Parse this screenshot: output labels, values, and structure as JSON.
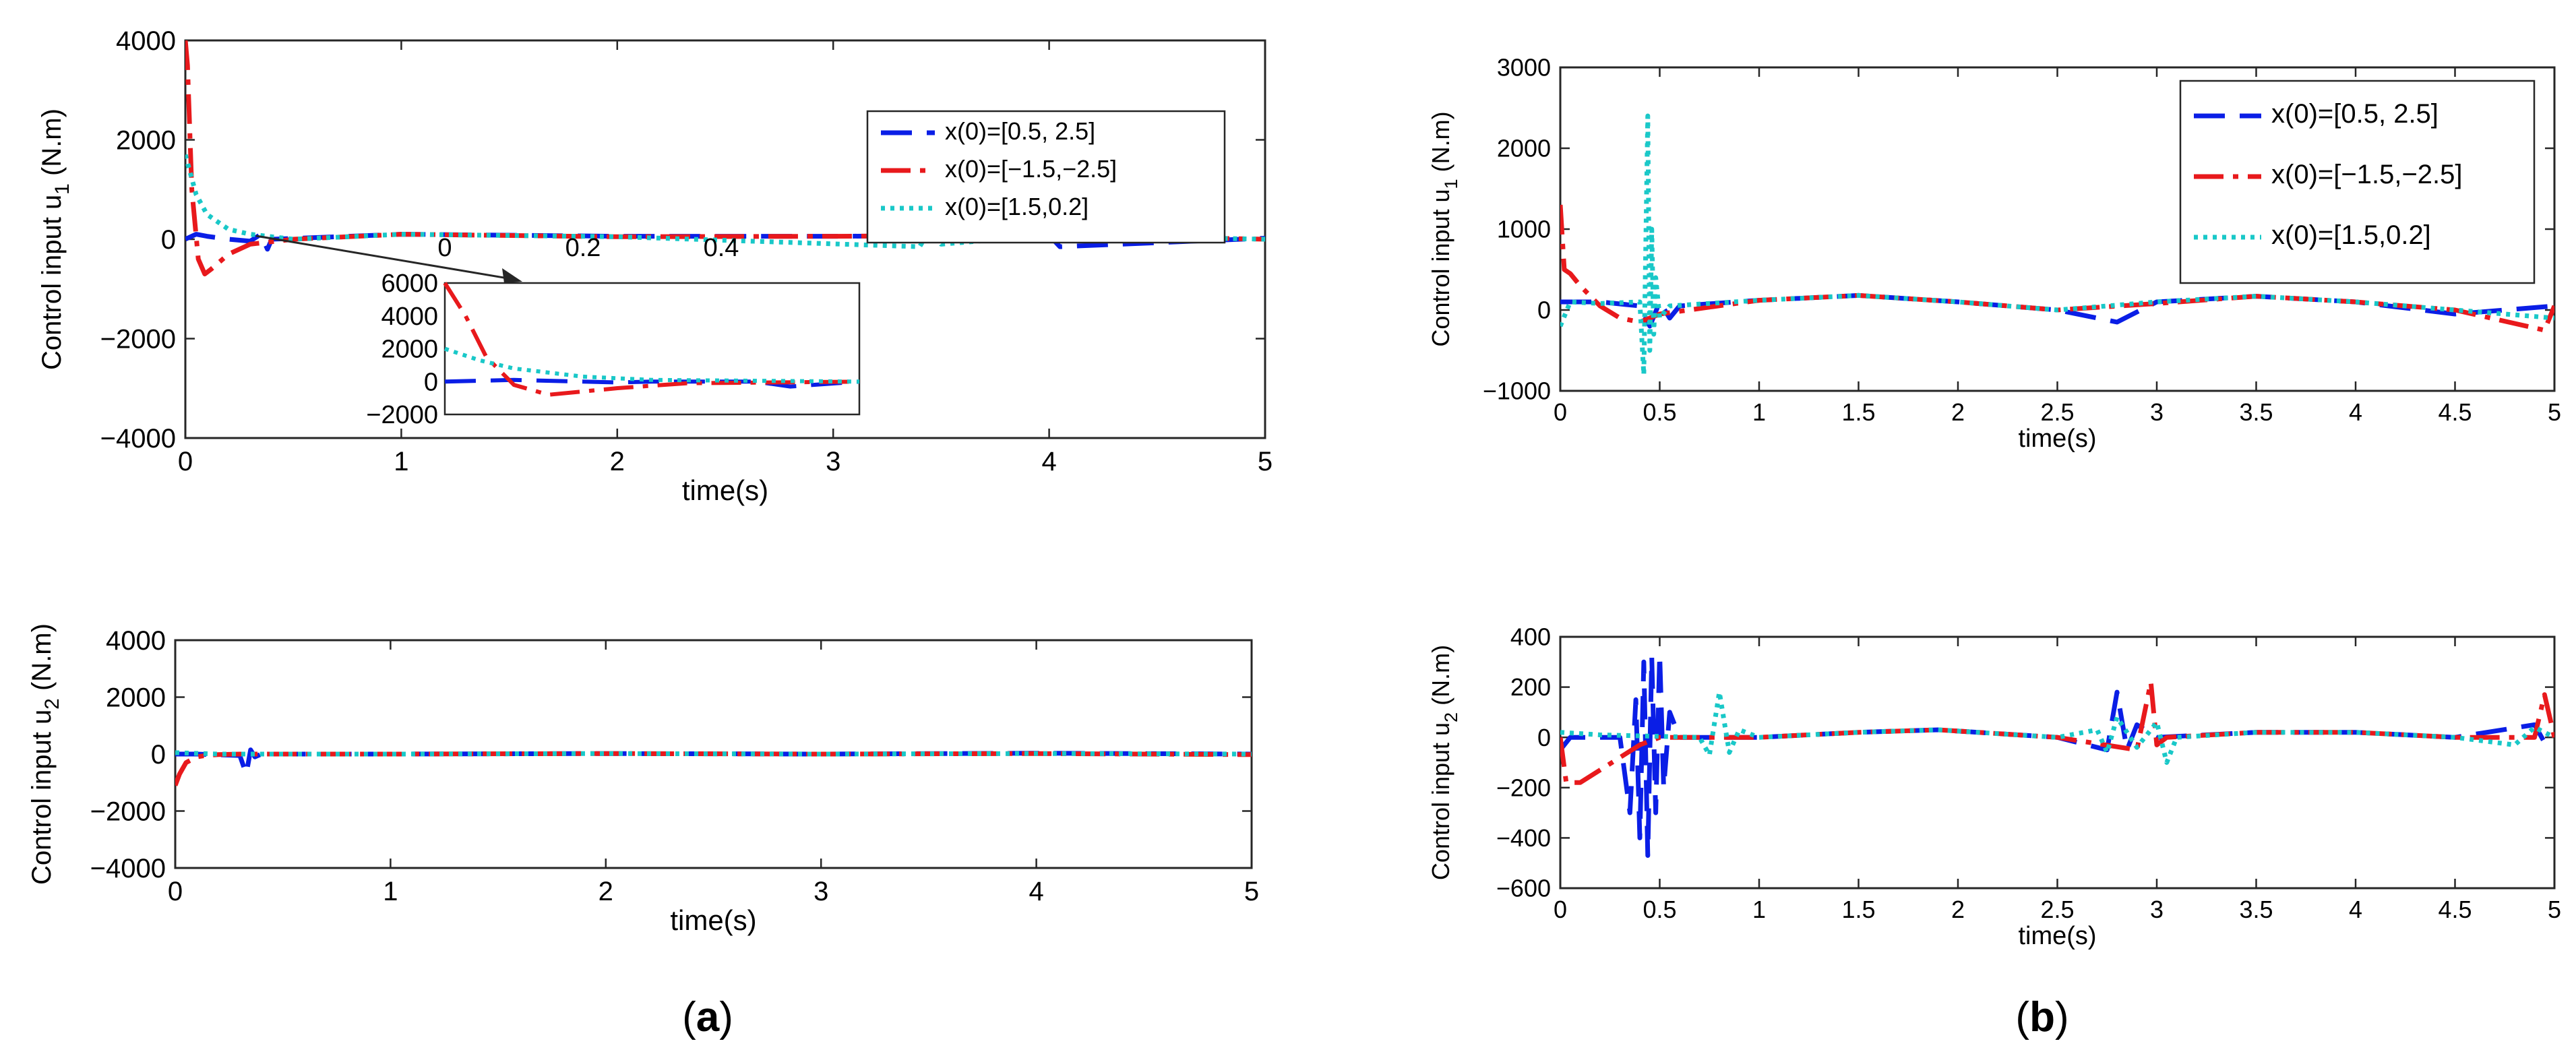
{
  "colors": {
    "s1": "#0a1ee6",
    "s2": "#e8191c",
    "s3": "#19c8c8"
  },
  "captions": {
    "a": "a",
    "b": "b"
  },
  "chart_data": [
    {
      "id": "a1",
      "type": "line",
      "ylabel": "Control input u",
      "ylabel_sub": "1",
      "ylabel_unit": " (N.m)",
      "xlabel": "time(s)",
      "xlim": [
        0,
        5
      ],
      "ylim": [
        -4000,
        4000
      ],
      "xticks": [
        "0",
        "1",
        "2",
        "3",
        "4",
        "5"
      ],
      "yticks": [
        "-4000",
        "-2000",
        "0",
        "2000",
        "4000"
      ],
      "legend": [
        "x(0)=[0.5, 2.5]",
        "x(0)=[−1.5,−2.5]",
        "x(0)=[1.5,0.2]"
      ],
      "legend_position": "top-right",
      "inset_xticks": [
        "0",
        "0.2",
        "0.4"
      ],
      "inset_yticks": [
        "6000",
        "4000",
        "2000",
        "0",
        "-2000"
      ],
      "series": [
        {
          "x": [
            0,
            0.05,
            0.1,
            0.2,
            0.3,
            0.35,
            0.38,
            0.4,
            1,
            2,
            3,
            4,
            4.05,
            5
          ],
          "y": [
            0,
            100,
            60,
            0,
            -40,
            100,
            -200,
            0,
            100,
            60,
            60,
            80,
            -150,
            20
          ]
        },
        {
          "x": [
            0,
            0.01,
            0.03,
            0.06,
            0.09,
            0.12,
            0.2,
            0.3,
            0.5,
            1,
            2,
            3,
            4,
            5
          ],
          "y": [
            4000,
            3500,
            1000,
            -400,
            -700,
            -600,
            -300,
            -100,
            0,
            100,
            50,
            60,
            80,
            0
          ]
        },
        {
          "x": [
            0,
            0.05,
            0.1,
            0.2,
            0.3,
            0.5,
            1,
            2,
            3.4,
            3.45,
            3.5,
            4,
            5
          ],
          "y": [
            1700,
            900,
            500,
            200,
            100,
            0,
            100,
            50,
            -150,
            200,
            -100,
            80,
            0
          ]
        }
      ]
    },
    {
      "id": "a2",
      "type": "line",
      "ylabel": "Control input u",
      "ylabel_sub": "2",
      "ylabel_unit": " (N.m)",
      "xlabel": "time(s)",
      "xlim": [
        0,
        5
      ],
      "ylim": [
        -4000,
        4000
      ],
      "xticks": [
        "0",
        "1",
        "2",
        "3",
        "4",
        "5"
      ],
      "yticks": [
        "-4000",
        "-2000",
        "0",
        "2000",
        "4000"
      ],
      "series": [
        {
          "x": [
            0,
            0.1,
            0.3,
            0.33,
            0.35,
            0.37,
            0.4,
            1,
            2,
            3,
            4,
            5
          ],
          "y": [
            0,
            0,
            -50,
            -700,
            150,
            -100,
            0,
            0,
            20,
            0,
            30,
            0
          ]
        },
        {
          "x": [
            0,
            0.02,
            0.05,
            0.1,
            0.15,
            0.2,
            0.3,
            0.5,
            1,
            2,
            3,
            4,
            5
          ],
          "y": [
            -1100,
            -700,
            -300,
            -100,
            -40,
            -20,
            0,
            0,
            0,
            20,
            0,
            20,
            -20
          ]
        },
        {
          "x": [
            0,
            0.2,
            1,
            2,
            3,
            4,
            5
          ],
          "y": [
            50,
            0,
            0,
            20,
            0,
            20,
            0
          ]
        }
      ]
    },
    {
      "id": "b1",
      "type": "line",
      "ylabel": "Control input u",
      "ylabel_sub": "1",
      "ylabel_unit": " (N.m)",
      "xlabel": "time(s)",
      "xlim": [
        0,
        5
      ],
      "ylim": [
        -1000,
        3000
      ],
      "xticks": [
        "0",
        "0.5",
        "1",
        "1.5",
        "2",
        "2.5",
        "3",
        "3.5",
        "4",
        "4.5",
        "5"
      ],
      "yticks": [
        "-1000",
        "0",
        "1000",
        "2000",
        "3000"
      ],
      "legend": [
        "x(0)=[0.5, 2.5]",
        "x(0)=[−1.5,−2.5]",
        "x(0)=[1.5,0.2]"
      ],
      "legend_position": "top-right",
      "series": [
        {
          "x": [
            0,
            0.2,
            0.4,
            0.45,
            0.5,
            0.55,
            0.6,
            1,
            1.5,
            2,
            2.5,
            2.8,
            3,
            3.5,
            4,
            4.5,
            5
          ],
          "y": [
            100,
            100,
            50,
            -200,
            100,
            -100,
            50,
            120,
            180,
            100,
            0,
            -150,
            100,
            170,
            100,
            -50,
            50
          ]
        },
        {
          "x": [
            0,
            0.02,
            0.05,
            0.1,
            0.2,
            0.3,
            0.4,
            0.5,
            1,
            1.5,
            2,
            2.5,
            3,
            3.5,
            4,
            4.5,
            4.95,
            5
          ],
          "y": [
            1300,
            500,
            450,
            300,
            50,
            -100,
            -150,
            -50,
            120,
            180,
            100,
            0,
            80,
            170,
            100,
            0,
            -250,
            50
          ]
        },
        {
          "x": [
            0,
            0.05,
            0.2,
            0.4,
            0.42,
            0.44,
            0.45,
            0.46,
            0.47,
            0.48,
            0.5,
            0.55,
            1,
            1.5,
            2,
            2.5,
            3,
            3.5,
            4,
            4.5,
            5
          ],
          "y": [
            -200,
            100,
            80,
            100,
            -800,
            2400,
            -500,
            1000,
            -300,
            400,
            -100,
            50,
            120,
            180,
            100,
            0,
            100,
            170,
            100,
            0,
            -100
          ]
        }
      ]
    },
    {
      "id": "b2",
      "type": "line",
      "ylabel": "Control input u",
      "ylabel_sub": "2",
      "ylabel_unit": " (N.m)",
      "xlabel": "time(s)",
      "xlim": [
        0,
        5
      ],
      "ylim": [
        -600,
        400
      ],
      "xticks": [
        "0",
        "0.5",
        "1",
        "1.5",
        "2",
        "2.5",
        "3",
        "3.5",
        "4",
        "4.5",
        "5"
      ],
      "yticks": [
        "-600",
        "-400",
        "-200",
        "0",
        "200",
        "400"
      ],
      "series": [
        {
          "x": [
            0,
            0.05,
            0.2,
            0.3,
            0.35,
            0.38,
            0.4,
            0.42,
            0.44,
            0.46,
            0.48,
            0.5,
            0.52,
            0.55,
            0.6,
            1,
            1.5,
            1.9,
            2.5,
            2.75,
            2.8,
            2.85,
            2.9,
            3,
            3.5,
            4,
            4.5,
            4.9,
            4.95,
            5
          ],
          "y": [
            -50,
            0,
            0,
            0,
            -300,
            150,
            -400,
            300,
            -470,
            320,
            -300,
            330,
            -200,
            100,
            0,
            0,
            20,
            30,
            0,
            -50,
            180,
            -50,
            50,
            0,
            20,
            20,
            0,
            50,
            -20,
            0
          ]
        },
        {
          "x": [
            0,
            0.03,
            0.1,
            0.2,
            0.3,
            0.4,
            0.5,
            0.6,
            1,
            1.5,
            1.9,
            2.5,
            2.9,
            2.97,
            3,
            3.05,
            3.5,
            4,
            4.5,
            4.9,
            4.95,
            5
          ],
          "y": [
            0,
            -180,
            -180,
            -130,
            -80,
            -30,
            0,
            0,
            0,
            20,
            30,
            0,
            -50,
            220,
            -30,
            0,
            20,
            20,
            0,
            0,
            170,
            0
          ]
        },
        {
          "x": [
            0,
            0.2,
            0.7,
            0.75,
            0.8,
            0.85,
            0.9,
            1,
            1.5,
            1.9,
            2.5,
            2.7,
            2.75,
            2.8,
            2.9,
            3,
            3.05,
            3.1,
            3.5,
            4,
            4.5,
            4.8,
            4.9,
            5
          ],
          "y": [
            20,
            10,
            0,
            -70,
            180,
            -60,
            30,
            0,
            20,
            30,
            0,
            30,
            -60,
            80,
            -40,
            60,
            -100,
            0,
            20,
            20,
            0,
            -30,
            40,
            0
          ]
        }
      ]
    }
  ]
}
